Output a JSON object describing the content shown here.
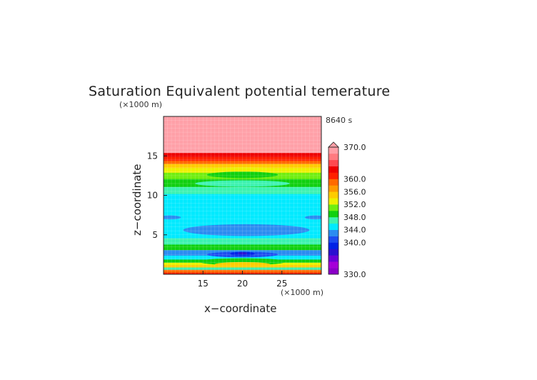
{
  "chart_data": {
    "type": "heatmap",
    "title": "Saturation Equivalent potential temerature",
    "time_label": "8640 s",
    "xlabel": "x−coordinate",
    "ylabel": "z−coordinate",
    "x_unit": "(×1000 m)",
    "y_unit": "(×1000 m)",
    "xlim": [
      10,
      30
    ],
    "ylim": [
      0,
      20
    ],
    "x_ticks": [
      15,
      20,
      25
    ],
    "y_ticks": [
      5,
      10,
      15
    ],
    "colorbar": {
      "min": 330,
      "max": 370,
      "tick_values": [
        330,
        340,
        344,
        348,
        352,
        356,
        360,
        370
      ],
      "tick_labels": [
        "330.0",
        "340.0",
        "344.0",
        "348.0",
        "352.0",
        "356.0",
        "360.0",
        "370.0"
      ],
      "levels": [
        {
          "from": 330,
          "to": 332,
          "color": "#8b00c8"
        },
        {
          "from": 332,
          "to": 334,
          "color": "#a600d8"
        },
        {
          "from": 334,
          "to": 336,
          "color": "#6b00d8"
        },
        {
          "from": 336,
          "to": 338,
          "color": "#2a10d0"
        },
        {
          "from": 338,
          "to": 340,
          "color": "#0022e6"
        },
        {
          "from": 340,
          "to": 342,
          "color": "#1c4cf0"
        },
        {
          "from": 342,
          "to": 344,
          "color": "#2b8cf0"
        },
        {
          "from": 344,
          "to": 346,
          "color": "#00eaff"
        },
        {
          "from": 346,
          "to": 348,
          "color": "#3cf2b0"
        },
        {
          "from": 348,
          "to": 350,
          "color": "#10d010"
        },
        {
          "from": 350,
          "to": 352,
          "color": "#70ee10"
        },
        {
          "from": 352,
          "to": 354,
          "color": "#eef000"
        },
        {
          "from": 354,
          "to": 356,
          "color": "#ffcc00"
        },
        {
          "from": 356,
          "to": 358,
          "color": "#ff9a00"
        },
        {
          "from": 358,
          "to": 360,
          "color": "#ff6a00"
        },
        {
          "from": 360,
          "to": 362,
          "color": "#ff2000"
        },
        {
          "from": 362,
          "to": 364,
          "color": "#ee0000"
        },
        {
          "from": 364,
          "to": 366,
          "color": "#ff4a50"
        },
        {
          "from": 366,
          "to": 368,
          "color": "#ff7a80"
        },
        {
          "from": 368,
          "to": 370,
          "color": "#ff9ea6"
        }
      ],
      "overflow_color": "#ffa0a8"
    },
    "bands": [
      {
        "z_bottom": 0.0,
        "z_top": 0.25,
        "color": "#ff2000"
      },
      {
        "z_bottom": 0.25,
        "z_top": 0.6,
        "color": "#ff6a00"
      },
      {
        "z_bottom": 0.6,
        "z_top": 0.9,
        "color": "#3cf2b0"
      },
      {
        "z_bottom": 0.9,
        "z_top": 1.2,
        "color": "#ffcc00"
      },
      {
        "z_bottom": 1.2,
        "z_top": 1.5,
        "color": "#eef000"
      },
      {
        "z_bottom": 1.5,
        "z_top": 1.9,
        "color": "#10d010"
      },
      {
        "z_bottom": 1.9,
        "z_top": 2.4,
        "color": "#00eaff"
      },
      {
        "z_bottom": 2.4,
        "z_top": 3.1,
        "color": "#2b8cf0"
      },
      {
        "z_bottom": 3.1,
        "z_top": 3.8,
        "color": "#10d010"
      },
      {
        "z_bottom": 3.8,
        "z_top": 4.6,
        "color": "#3cf2b0"
      },
      {
        "z_bottom": 4.6,
        "z_top": 10.2,
        "color": "#00eaff"
      },
      {
        "z_bottom": 10.2,
        "z_top": 11.1,
        "color": "#3cf2b0"
      },
      {
        "z_bottom": 11.1,
        "z_top": 12.1,
        "color": "#10d010"
      },
      {
        "z_bottom": 12.1,
        "z_top": 12.9,
        "color": "#70ee10"
      },
      {
        "z_bottom": 12.9,
        "z_top": 13.5,
        "color": "#eef000"
      },
      {
        "z_bottom": 13.5,
        "z_top": 14.0,
        "color": "#ffcc00"
      },
      {
        "z_bottom": 14.0,
        "z_top": 14.4,
        "color": "#ff6a00"
      },
      {
        "z_bottom": 14.4,
        "z_top": 14.9,
        "color": "#ff2000"
      },
      {
        "z_bottom": 14.9,
        "z_top": 15.4,
        "color": "#ee0000"
      },
      {
        "z_bottom": 15.4,
        "z_top": 20.0,
        "color": "#ffa0a8"
      }
    ],
    "features": [
      {
        "shape": "ellipse",
        "x": 20.5,
        "z": 5.6,
        "rx": 8.0,
        "rz": 0.75,
        "color": "#2b8cf0"
      },
      {
        "shape": "ellipse",
        "x": 10.8,
        "z": 7.2,
        "rx": 1.4,
        "rz": 0.25,
        "color": "#2b8cf0"
      },
      {
        "shape": "ellipse",
        "x": 29.3,
        "z": 7.2,
        "rx": 1.4,
        "rz": 0.25,
        "color": "#2b8cf0"
      },
      {
        "shape": "ellipse",
        "x": 20.0,
        "z": 2.5,
        "rx": 4.5,
        "rz": 0.35,
        "color": "#1c4cf0"
      },
      {
        "shape": "ellipse",
        "x": 20.0,
        "z": 2.6,
        "rx": 1.6,
        "rz": 0.25,
        "color": "#0022e6"
      },
      {
        "shape": "ellipse",
        "x": 20.0,
        "z": 2.65,
        "rx": 0.6,
        "rz": 0.15,
        "color": "#2a10d0"
      },
      {
        "shape": "ellipse",
        "x": 20.0,
        "z": 1.6,
        "rx": 5.5,
        "rz": 0.45,
        "color": "#10d010"
      },
      {
        "shape": "ellipse",
        "x": 20.0,
        "z": 1.25,
        "rx": 3.5,
        "rz": 0.3,
        "color": "#ffcc00"
      },
      {
        "shape": "ellipse",
        "x": 20.0,
        "z": 13.2,
        "rx": 5.0,
        "rz": 0.35,
        "color": "#eef000"
      },
      {
        "shape": "ellipse",
        "x": 20.0,
        "z": 12.6,
        "rx": 4.5,
        "rz": 0.4,
        "color": "#10d010"
      },
      {
        "shape": "ellipse",
        "x": 20.0,
        "z": 11.5,
        "rx": 6.0,
        "rz": 0.4,
        "color": "#3cf2b0"
      }
    ],
    "grid": true
  }
}
